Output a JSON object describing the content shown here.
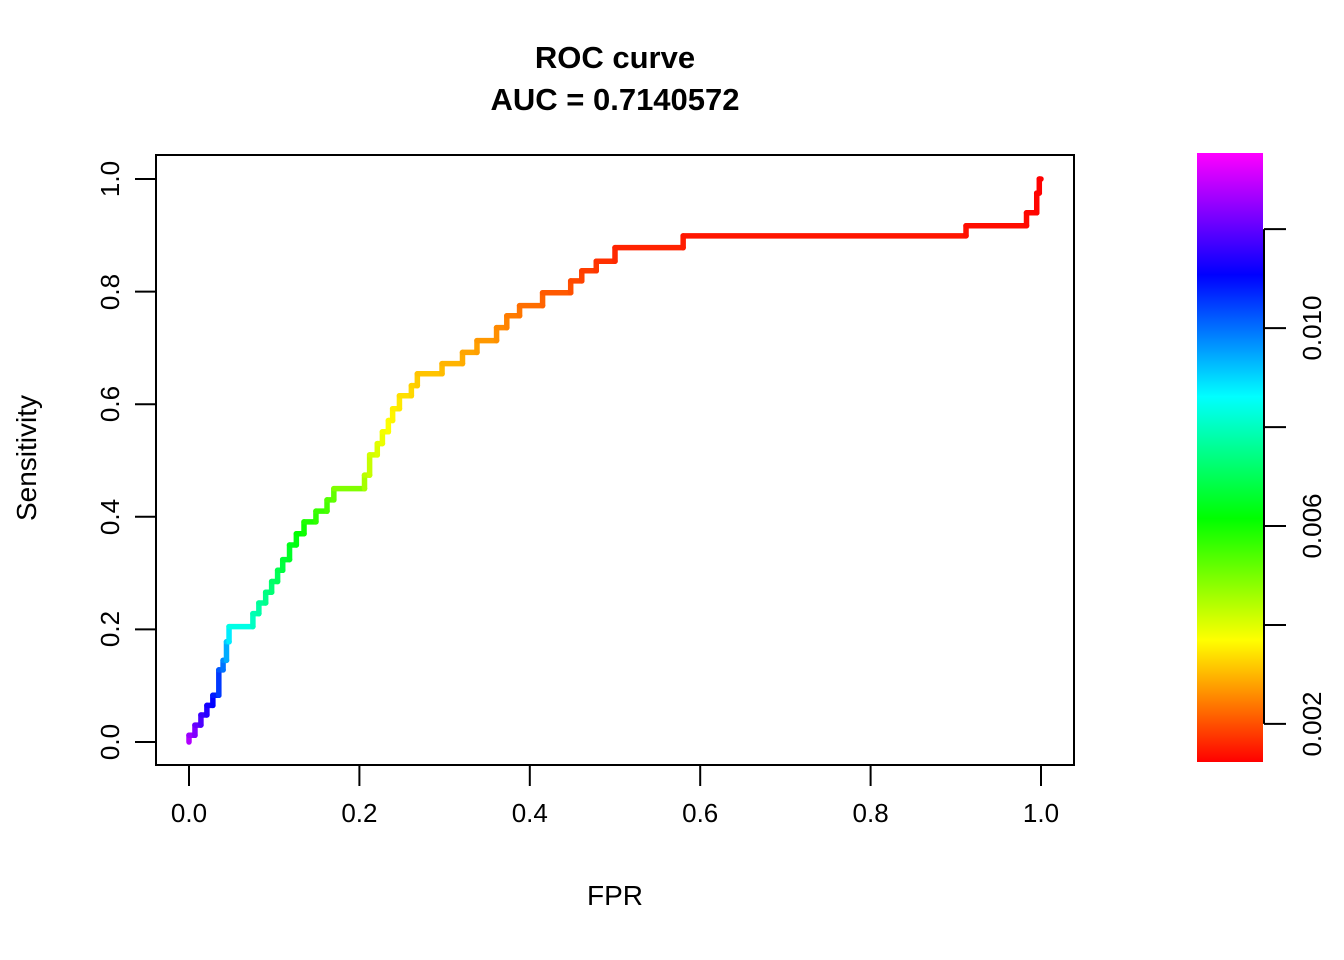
{
  "chart_data": {
    "type": "line",
    "subtype": "roc_step_curve",
    "title": "ROC curve",
    "subtitle": "AUC = 0.7140572",
    "auc": 0.7140572,
    "xlabel": "FPR",
    "ylabel": "Sensitivity",
    "xlim": [
      0,
      1
    ],
    "ylim": [
      0,
      1
    ],
    "grid": false,
    "background": "#ffffff",
    "x_ticks": {
      "values": [
        0,
        0.2,
        0.4,
        0.6,
        0.8,
        1.0
      ],
      "labels": [
        "0.0",
        "0.2",
        "0.4",
        "0.6",
        "0.8",
        "1.0"
      ]
    },
    "y_ticks": {
      "values": [
        0,
        0.2,
        0.4,
        0.6,
        0.8,
        1.0
      ],
      "labels": [
        "0.0",
        "0.2",
        "0.4",
        "0.6",
        "0.8",
        "1.0"
      ]
    },
    "colorbar": {
      "position": "right",
      "vmin": 0.00123,
      "vmax": 0.01354,
      "gradient_top_to_bottom": [
        "#ff00ff",
        "#0000ff",
        "#00ffff",
        "#00ff00",
        "#ffff00",
        "#ff0000"
      ],
      "ticks": [
        {
          "value": 0.012,
          "label": ""
        },
        {
          "value": 0.01,
          "label": "0.010"
        },
        {
          "value": 0.008,
          "label": ""
        },
        {
          "value": 0.006,
          "label": "0.006"
        },
        {
          "value": 0.004,
          "label": ""
        },
        {
          "value": 0.002,
          "label": "0.002"
        }
      ]
    },
    "color_encoding": "curve colored by decision threshold: t=0 maps to colorbar top (magenta, high threshold ~0.0135), t=1 maps to colorbar bottom (red, low threshold ~0.0012); hue = 300*(1-t)",
    "series": [
      {
        "name": "ROC curve",
        "points_fpr_sens_t": [
          [
            0.0,
            0.0,
            0.05
          ],
          [
            0.0,
            0.012,
            0.07
          ],
          [
            0.007,
            0.012,
            0.09
          ],
          [
            0.007,
            0.03,
            0.11
          ],
          [
            0.014,
            0.03,
            0.13
          ],
          [
            0.014,
            0.048,
            0.15
          ],
          [
            0.021,
            0.048,
            0.16
          ],
          [
            0.021,
            0.065,
            0.18
          ],
          [
            0.028,
            0.065,
            0.19
          ],
          [
            0.028,
            0.083,
            0.21
          ],
          [
            0.035,
            0.083,
            0.23
          ],
          [
            0.035,
            0.128,
            0.26
          ],
          [
            0.04,
            0.128,
            0.28
          ],
          [
            0.04,
            0.145,
            0.3
          ],
          [
            0.044,
            0.145,
            0.32
          ],
          [
            0.044,
            0.178,
            0.35
          ],
          [
            0.047,
            0.178,
            0.37
          ],
          [
            0.047,
            0.205,
            0.4
          ],
          [
            0.075,
            0.205,
            0.44
          ],
          [
            0.075,
            0.228,
            0.455
          ],
          [
            0.082,
            0.228,
            0.465
          ],
          [
            0.082,
            0.247,
            0.475
          ],
          [
            0.09,
            0.247,
            0.485
          ],
          [
            0.09,
            0.266,
            0.495
          ],
          [
            0.097,
            0.266,
            0.505
          ],
          [
            0.097,
            0.285,
            0.515
          ],
          [
            0.104,
            0.285,
            0.525
          ],
          [
            0.104,
            0.305,
            0.535
          ],
          [
            0.11,
            0.305,
            0.545
          ],
          [
            0.11,
            0.324,
            0.555
          ],
          [
            0.118,
            0.324,
            0.565
          ],
          [
            0.118,
            0.35,
            0.575
          ],
          [
            0.126,
            0.35,
            0.585
          ],
          [
            0.126,
            0.37,
            0.595
          ],
          [
            0.135,
            0.37,
            0.605
          ],
          [
            0.135,
            0.391,
            0.615
          ],
          [
            0.149,
            0.391,
            0.63
          ],
          [
            0.149,
            0.41,
            0.64
          ],
          [
            0.162,
            0.41,
            0.65
          ],
          [
            0.162,
            0.43,
            0.66
          ],
          [
            0.17,
            0.43,
            0.67
          ],
          [
            0.17,
            0.45,
            0.68
          ],
          [
            0.206,
            0.45,
            0.72
          ],
          [
            0.206,
            0.474,
            0.74
          ],
          [
            0.212,
            0.474,
            0.75
          ],
          [
            0.212,
            0.51,
            0.76
          ],
          [
            0.221,
            0.51,
            0.77
          ],
          [
            0.221,
            0.53,
            0.775
          ],
          [
            0.227,
            0.53,
            0.78
          ],
          [
            0.227,
            0.551,
            0.79
          ],
          [
            0.234,
            0.551,
            0.795
          ],
          [
            0.234,
            0.571,
            0.8
          ],
          [
            0.239,
            0.571,
            0.805
          ],
          [
            0.239,
            0.592,
            0.81
          ],
          [
            0.247,
            0.592,
            0.815
          ],
          [
            0.247,
            0.615,
            0.82
          ],
          [
            0.261,
            0.615,
            0.828
          ],
          [
            0.261,
            0.633,
            0.833
          ],
          [
            0.268,
            0.633,
            0.838
          ],
          [
            0.268,
            0.654,
            0.843
          ],
          [
            0.297,
            0.654,
            0.85
          ],
          [
            0.297,
            0.672,
            0.855
          ],
          [
            0.321,
            0.672,
            0.862
          ],
          [
            0.321,
            0.692,
            0.868
          ],
          [
            0.338,
            0.692,
            0.873
          ],
          [
            0.338,
            0.713,
            0.878
          ],
          [
            0.361,
            0.713,
            0.884
          ],
          [
            0.361,
            0.736,
            0.89
          ],
          [
            0.373,
            0.736,
            0.895
          ],
          [
            0.373,
            0.757,
            0.9
          ],
          [
            0.388,
            0.757,
            0.905
          ],
          [
            0.388,
            0.775,
            0.91
          ],
          [
            0.415,
            0.775,
            0.918
          ],
          [
            0.415,
            0.798,
            0.926
          ],
          [
            0.448,
            0.798,
            0.934
          ],
          [
            0.448,
            0.819,
            0.94
          ],
          [
            0.461,
            0.819,
            0.945
          ],
          [
            0.461,
            0.837,
            0.95
          ],
          [
            0.478,
            0.837,
            0.955
          ],
          [
            0.478,
            0.854,
            0.96
          ],
          [
            0.5,
            0.854,
            0.965
          ],
          [
            0.5,
            0.878,
            0.97
          ],
          [
            0.58,
            0.878,
            0.975
          ],
          [
            0.58,
            0.899,
            0.98
          ],
          [
            0.912,
            0.899,
            0.985
          ],
          [
            0.912,
            0.917,
            0.988
          ],
          [
            0.983,
            0.917,
            0.991
          ],
          [
            0.983,
            0.94,
            0.994
          ],
          [
            0.995,
            0.94,
            0.996
          ],
          [
            0.995,
            0.975,
            0.998
          ],
          [
            0.998,
            0.975,
            0.999
          ],
          [
            0.998,
            1.0,
            1.0
          ],
          [
            1.0,
            1.0,
            1.0
          ]
        ]
      }
    ]
  }
}
